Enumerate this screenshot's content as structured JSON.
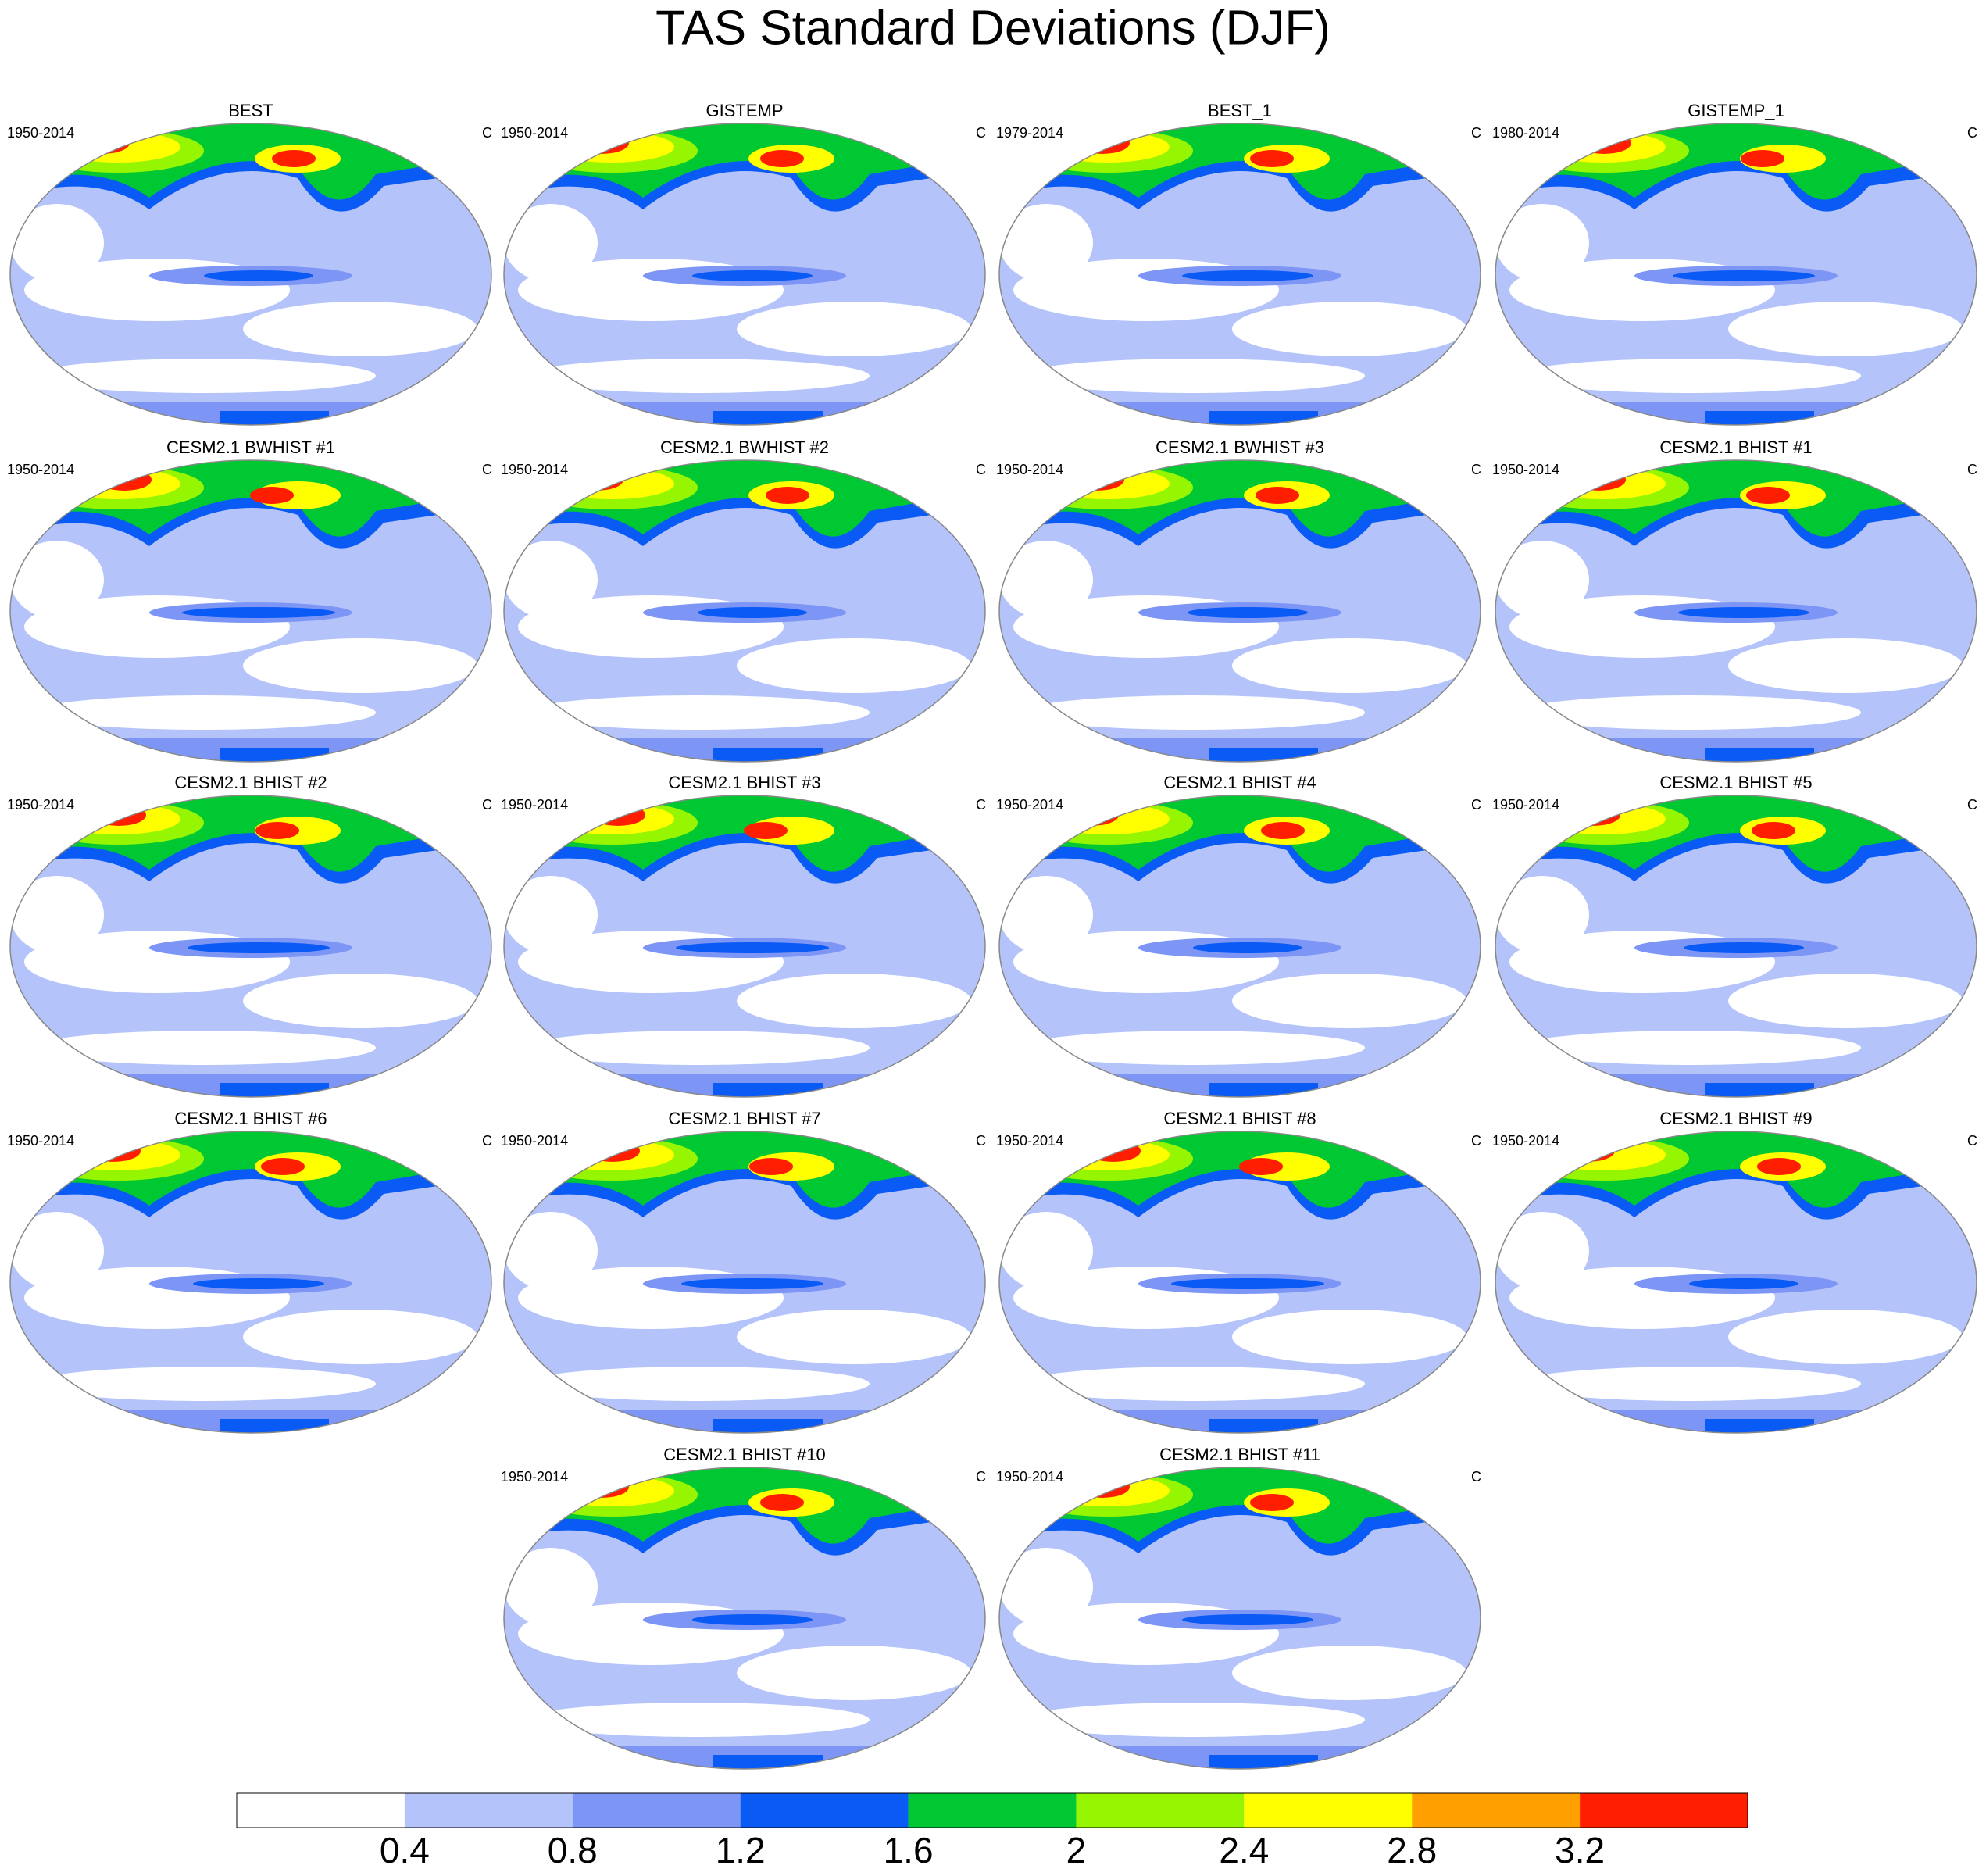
{
  "title": "TAS Standard Deviations (DJF)",
  "panels": [
    {
      "title": "BEST",
      "period": "1950-2014",
      "units": "C"
    },
    {
      "title": "GISTEMP",
      "period": "1950-2014",
      "units": "C"
    },
    {
      "title": "BEST_1",
      "period": "1979-2014",
      "units": "C"
    },
    {
      "title": "GISTEMP_1",
      "period": "1980-2014",
      "units": "C"
    },
    {
      "title": "CESM2.1 BWHIST #1",
      "period": "1950-2014",
      "units": "C"
    },
    {
      "title": "CESM2.1 BWHIST #2",
      "period": "1950-2014",
      "units": "C"
    },
    {
      "title": "CESM2.1 BWHIST #3",
      "period": "1950-2014",
      "units": "C"
    },
    {
      "title": "CESM2.1 BHIST #1",
      "period": "1950-2014",
      "units": "C"
    },
    {
      "title": "CESM2.1 BHIST #2",
      "period": "1950-2014",
      "units": "C"
    },
    {
      "title": "CESM2.1 BHIST #3",
      "period": "1950-2014",
      "units": "C"
    },
    {
      "title": "CESM2.1 BHIST #4",
      "period": "1950-2014",
      "units": "C"
    },
    {
      "title": "CESM2.1 BHIST #5",
      "period": "1950-2014",
      "units": "C"
    },
    {
      "title": "CESM2.1 BHIST #6",
      "period": "1950-2014",
      "units": "C"
    },
    {
      "title": "CESM2.1 BHIST #7",
      "period": "1950-2014",
      "units": "C"
    },
    {
      "title": "CESM2.1 BHIST #8",
      "period": "1950-2014",
      "units": "C"
    },
    {
      "title": "CESM2.1 BHIST #9",
      "period": "1950-2014",
      "units": "C"
    },
    {
      "title": "CESM2.1 BHIST #10",
      "period": "1950-2014",
      "units": "C"
    },
    {
      "title": "CESM2.1 BHIST #11",
      "period": "1950-2014",
      "units": "C"
    }
  ],
  "colorbar": {
    "colors": [
      "#ffffff",
      "#b4c3fa",
      "#7d96f5",
      "#0a5af5",
      "#00c832",
      "#96f500",
      "#ffff00",
      "#ffa000",
      "#ff1e00"
    ],
    "ticks": [
      0.4,
      0.8,
      1.2,
      1.6,
      2,
      2.4,
      2.8,
      3.2
    ]
  }
}
